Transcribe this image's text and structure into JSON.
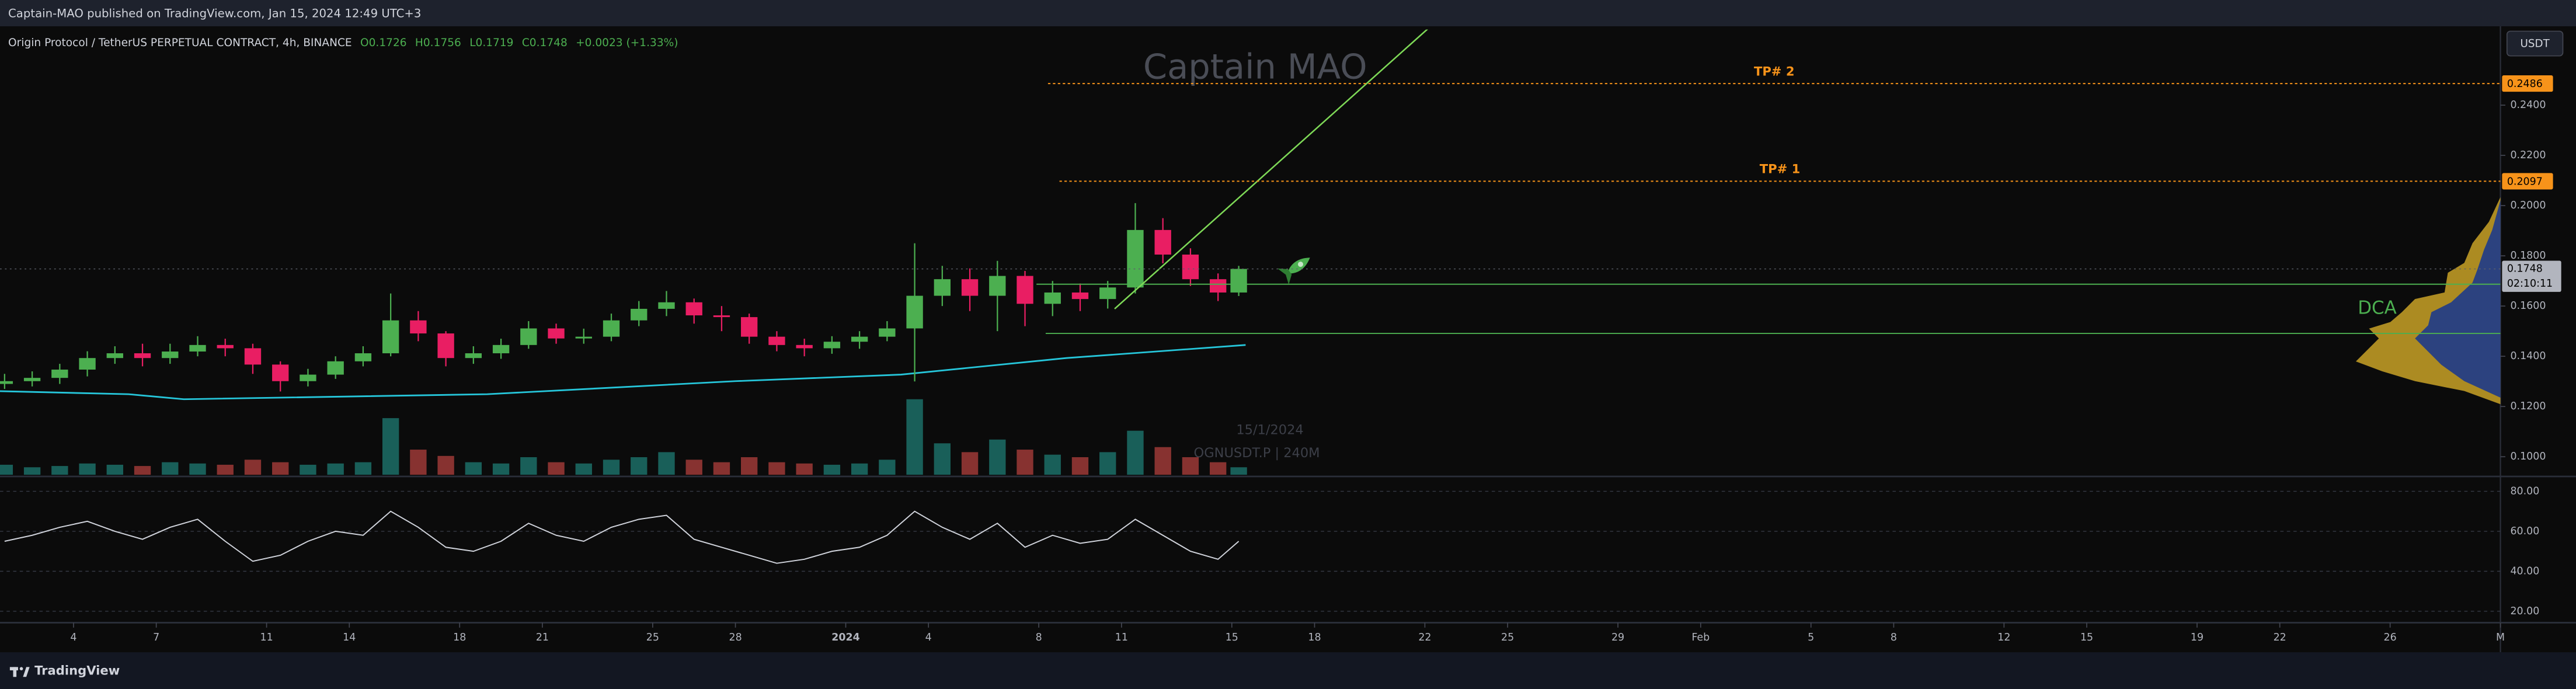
{
  "header": "Captain-MAO published on TradingView.com, Jan 15, 2024 12:49 UTC+3",
  "footer": "TradingView",
  "currency_button": "USDT",
  "watermark": "Captain MAO",
  "symbol_watermark": [
    "15/1/2024",
    "OGNUSDT.P | 240M"
  ],
  "chart_data": {
    "type": "candlestick",
    "title": "Origin Protocol / TetherUS PERPETUAL CONTRACT, 4h, BINANCE",
    "ohlc_legend": [
      "O0.1726",
      "H0.1756",
      "L0.1719",
      "C0.1748",
      "+0.0023 (+1.33%)"
    ],
    "x": [
      "2023-12-01T12:00",
      "2023-12-02T12:00",
      "2023-12-03T12:00",
      "2023-12-04T12:00",
      "2023-12-05T12:00",
      "2023-12-06T12:00",
      "2023-12-07T12:00",
      "2023-12-08T12:00",
      "2023-12-09T12:00",
      "2023-12-10T12:00",
      "2023-12-11T12:00",
      "2023-12-12T12:00",
      "2023-12-13T12:00",
      "2023-12-14T12:00",
      "2023-12-15T12:00",
      "2023-12-16T12:00",
      "2023-12-17T12:00",
      "2023-12-18T12:00",
      "2023-12-19T12:00",
      "2023-12-20T12:00",
      "2023-12-21T12:00",
      "2023-12-22T12:00",
      "2023-12-23T12:00",
      "2023-12-24T12:00",
      "2023-12-25T12:00",
      "2023-12-26T12:00",
      "2023-12-27T12:00",
      "2023-12-28T12:00",
      "2023-12-29T12:00",
      "2023-12-30T12:00",
      "2023-12-31T12:00",
      "2024-01-01T12:00",
      "2024-01-02T12:00",
      "2024-01-03T12:00",
      "2024-01-04T12:00",
      "2024-01-05T12:00",
      "2024-01-06T12:00",
      "2024-01-07T12:00",
      "2024-01-08T12:00",
      "2024-01-09T12:00",
      "2024-01-10T12:00",
      "2024-01-11T12:00",
      "2024-01-12T12:00",
      "2024-01-13T12:00",
      "2024-01-14T12:00",
      "2024-01-15T06:00"
    ],
    "open": [
      0.129,
      0.1301,
      0.1314,
      0.1347,
      0.1393,
      0.1412,
      0.1393,
      0.1419,
      0.1445,
      0.1432,
      0.1367,
      0.1301,
      0.1327,
      0.138,
      0.1412,
      0.1543,
      0.1491,
      0.1393,
      0.1412,
      0.1445,
      0.1511,
      0.1471,
      0.1478,
      0.1543,
      0.1589,
      0.1615,
      0.1563,
      0.1556,
      0.1478,
      0.1445,
      0.1432,
      0.1458,
      0.1478,
      0.1511,
      0.1641,
      0.1707,
      0.1641,
      0.172,
      0.1609,
      0.1654,
      0.1628,
      0.1674,
      0.1903,
      0.1805,
      0.1707,
      0.1654
    ],
    "high": [
      0.133,
      0.134,
      0.137,
      0.142,
      0.144,
      0.145,
      0.145,
      0.148,
      0.147,
      0.145,
      0.138,
      0.135,
      0.14,
      0.144,
      0.165,
      0.158,
      0.15,
      0.144,
      0.147,
      0.154,
      0.153,
      0.151,
      0.157,
      0.162,
      0.166,
      0.163,
      0.16,
      0.157,
      0.15,
      0.147,
      0.148,
      0.15,
      0.154,
      0.185,
      0.176,
      0.175,
      0.178,
      0.174,
      0.17,
      0.169,
      0.17,
      0.201,
      0.195,
      0.183,
      0.173,
      0.176
    ],
    "low": [
      0.127,
      0.128,
      0.129,
      0.132,
      0.137,
      0.136,
      0.137,
      0.14,
      0.14,
      0.133,
      0.126,
      0.128,
      0.131,
      0.136,
      0.14,
      0.146,
      0.136,
      0.137,
      0.139,
      0.143,
      0.145,
      0.145,
      0.146,
      0.152,
      0.156,
      0.153,
      0.15,
      0.145,
      0.142,
      0.14,
      0.141,
      0.143,
      0.146,
      0.13,
      0.16,
      0.158,
      0.15,
      0.152,
      0.156,
      0.158,
      0.159,
      0.165,
      0.177,
      0.168,
      0.162,
      0.164
    ],
    "close": [
      0.1301,
      0.1314,
      0.1347,
      0.1393,
      0.1412,
      0.1393,
      0.1419,
      0.1445,
      0.1432,
      0.1367,
      0.1301,
      0.1327,
      0.138,
      0.1412,
      0.1543,
      0.1491,
      0.1393,
      0.1412,
      0.1445,
      0.1511,
      0.1471,
      0.1478,
      0.1543,
      0.1589,
      0.1615,
      0.1563,
      0.1556,
      0.1478,
      0.1445,
      0.1432,
      0.1458,
      0.1478,
      0.1511,
      0.1641,
      0.1707,
      0.1641,
      0.172,
      0.1609,
      0.1654,
      0.1628,
      0.1674,
      0.1903,
      0.1805,
      0.1707,
      0.1654,
      0.1748
    ],
    "volume": [
      8,
      6,
      7,
      9,
      8,
      7,
      10,
      9,
      8,
      12,
      10,
      8,
      9,
      10,
      45,
      20,
      15,
      10,
      9,
      14,
      10,
      9,
      12,
      14,
      18,
      12,
      10,
      14,
      10,
      9,
      8,
      9,
      12,
      60,
      25,
      18,
      28,
      20,
      16,
      14,
      18,
      35,
      22,
      14,
      10,
      6
    ],
    "colors": {
      "up": "#4caf50",
      "down": "#e91e63",
      "vol_up": "#26a69a",
      "vol_down": "#ef5350",
      "ma": "#26c6da",
      "trend": "#7ed957",
      "level": "#4caf50",
      "tp": "#f7931a",
      "rsi": "#d1d4dc"
    },
    "ma": {
      "x": [
        "2023-12-01T00:00",
        "2023-12-06T00:00",
        "2023-12-08T00:00",
        "2023-12-19T00:00",
        "2023-12-28T00:00",
        "2024-01-03T00:00",
        "2024-01-09T00:00",
        "2024-01-15T12:00"
      ],
      "values": [
        0.1262,
        0.1249,
        0.1229,
        0.1249,
        0.1301,
        0.1327,
        0.1393,
        0.1445
      ]
    },
    "ylim": [
      0.0928,
      0.2701
    ],
    "yticks": [
      {
        "value": 0.1,
        "label": "0.1000"
      },
      {
        "value": 0.12,
        "label": "0.1200"
      },
      {
        "value": 0.14,
        "label": "0.1400"
      },
      {
        "value": 0.16,
        "label": "0.1600"
      },
      {
        "value": 0.18,
        "label": "0.1800"
      },
      {
        "value": 0.2,
        "label": "0.2000"
      },
      {
        "value": 0.22,
        "label": "0.2200"
      },
      {
        "value": 0.24,
        "label": "0.2400"
      }
    ],
    "xlim": [
      "2023-12-01T08:00",
      "2024-03-01T00:00"
    ],
    "xticks": [
      {
        "value": "2023-12-04",
        "label": "4"
      },
      {
        "value": "2023-12-07",
        "label": "7"
      },
      {
        "value": "2023-12-11",
        "label": "11"
      },
      {
        "value": "2023-12-14",
        "label": "14"
      },
      {
        "value": "2023-12-18",
        "label": "18"
      },
      {
        "value": "2023-12-21",
        "label": "21"
      },
      {
        "value": "2023-12-25",
        "label": "25"
      },
      {
        "value": "2023-12-28",
        "label": "28"
      },
      {
        "value": "2024-01-01",
        "label": "2024"
      },
      {
        "value": "2024-01-04",
        "label": "4"
      },
      {
        "value": "2024-01-08",
        "label": "8"
      },
      {
        "value": "2024-01-11",
        "label": "11"
      },
      {
        "value": "2024-01-15",
        "label": "15"
      },
      {
        "value": "2024-01-18",
        "label": "18"
      },
      {
        "value": "2024-01-22",
        "label": "22"
      },
      {
        "value": "2024-01-25",
        "label": "25"
      },
      {
        "value": "2024-01-29",
        "label": "29"
      },
      {
        "value": "2024-02-01",
        "label": "Feb"
      },
      {
        "value": "2024-02-05",
        "label": "5"
      },
      {
        "value": "2024-02-08",
        "label": "8"
      },
      {
        "value": "2024-02-12",
        "label": "12"
      },
      {
        "value": "2024-02-15",
        "label": "15"
      },
      {
        "value": "2024-02-19",
        "label": "19"
      },
      {
        "value": "2024-02-22",
        "label": "22"
      },
      {
        "value": "2024-02-26",
        "label": "26"
      },
      {
        "value": "2024-03-01",
        "label": "M"
      }
    ],
    "grid": false,
    "last_price": 0.1748,
    "countdown": "02:10:11",
    "tp_levels": [
      {
        "label": "TP# 1",
        "value": 0.2097,
        "start": "2024-01-08T18:00"
      },
      {
        "label": "TP# 2",
        "value": 0.2486,
        "start": "2024-01-08T08:00"
      }
    ],
    "support_lines": [
      {
        "value": 0.1687,
        "start": "2024-01-07T22:00"
      },
      {
        "value": 0.1491,
        "start": "2024-01-08T06:00"
      }
    ],
    "trendline": {
      "x": [
        "2024-01-10T18:00",
        "2024-01-22T05:00"
      ],
      "values": [
        0.1589,
        0.2714
      ]
    },
    "dca_label": "DCA",
    "rsi": {
      "values": [
        55,
        58,
        62,
        65,
        60,
        56,
        62,
        66,
        55,
        45,
        48,
        55,
        60,
        58,
        70,
        62,
        52,
        50,
        55,
        64,
        58,
        55,
        62,
        66,
        68,
        56,
        52,
        48,
        44,
        46,
        50,
        52,
        58,
        70,
        62,
        56,
        64,
        52,
        58,
        54,
        56,
        66,
        58,
        50,
        46,
        55
      ],
      "ylim": [
        15.1,
        86.6
      ],
      "yticks": [
        {
          "value": 20,
          "label": "20.00"
        },
        {
          "value": 40,
          "label": "40.00"
        },
        {
          "value": 60,
          "label": "60.00"
        },
        {
          "value": 80,
          "label": "80.00"
        }
      ]
    }
  }
}
